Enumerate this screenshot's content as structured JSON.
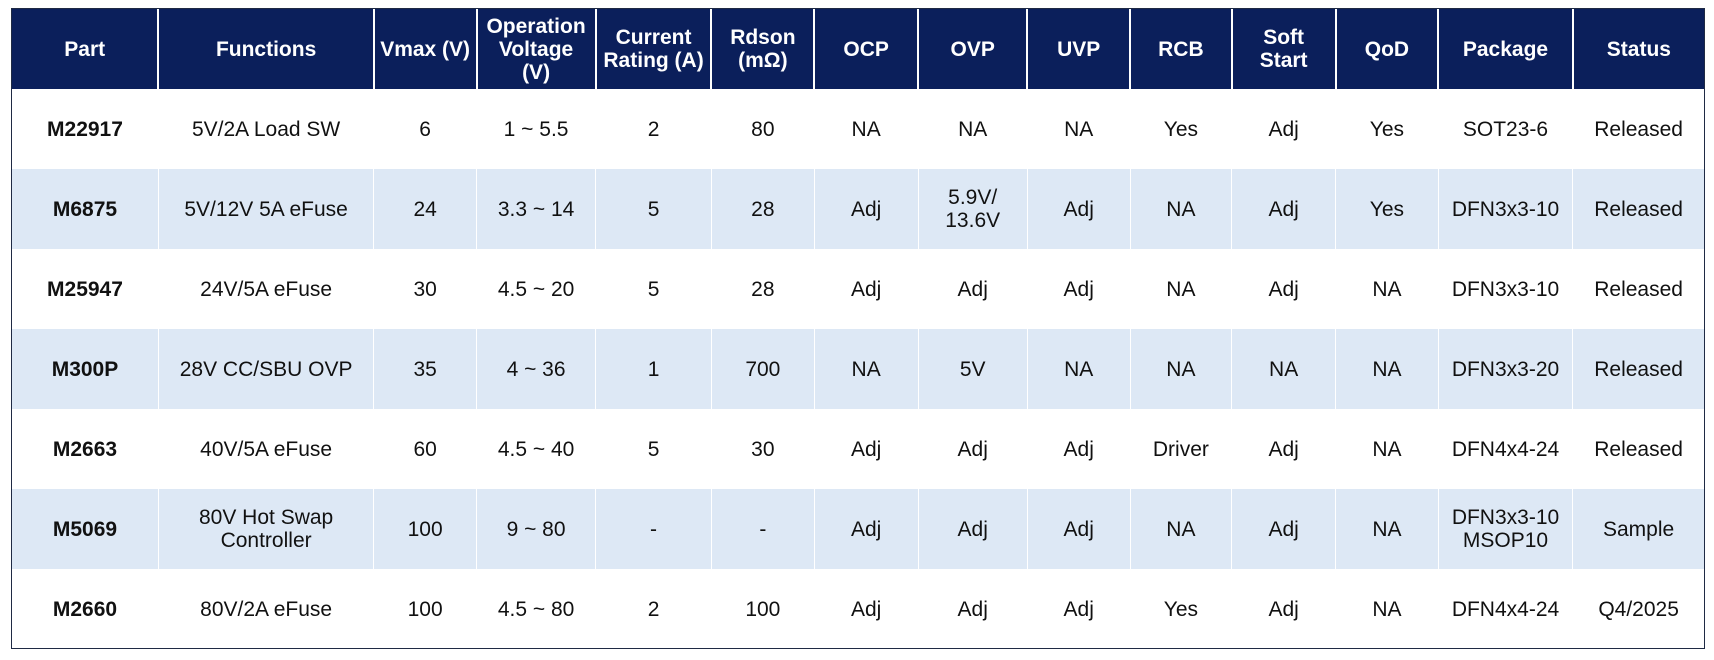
{
  "colors": {
    "header_bg": "#0b1f5b",
    "header_text": "#ffffff",
    "row_alt_bg": "#dde8f5",
    "row_bg": "#ffffff"
  },
  "table": {
    "headers": [
      "Part",
      "Functions",
      "Vmax (V)",
      "Operation\nVoltage\n(V)",
      "Current\nRating (A)",
      "Rdson\n(mΩ)",
      "OCP",
      "OVP",
      "UVP",
      "RCB",
      "Soft\nStart",
      "QoD",
      "Package",
      "Status"
    ],
    "rows": [
      [
        "M22917",
        "5V/2A Load SW",
        "6",
        "1 ~ 5.5",
        "2",
        "80",
        "NA",
        "NA",
        "NA",
        "Yes",
        "Adj",
        "Yes",
        "SOT23-6",
        "Released"
      ],
      [
        "M6875",
        "5V/12V 5A eFuse",
        "24",
        "3.3 ~ 14",
        "5",
        "28",
        "Adj",
        "5.9V/\n13.6V",
        "Adj",
        "NA",
        "Adj",
        "Yes",
        "DFN3x3-10",
        "Released"
      ],
      [
        "M25947",
        "24V/5A eFuse",
        "30",
        "4.5 ~ 20",
        "5",
        "28",
        "Adj",
        "Adj",
        "Adj",
        "NA",
        "Adj",
        "NA",
        "DFN3x3-10",
        "Released"
      ],
      [
        "M300P",
        "28V CC/SBU OVP",
        "35",
        "4 ~ 36",
        "1",
        "700",
        "NA",
        "5V",
        "NA",
        "NA",
        "NA",
        "NA",
        "DFN3x3-20",
        "Released"
      ],
      [
        "M2663",
        "40V/5A eFuse",
        "60",
        "4.5 ~ 40",
        "5",
        "30",
        "Adj",
        "Adj",
        "Adj",
        "Driver",
        "Adj",
        "NA",
        "DFN4x4-24",
        "Released"
      ],
      [
        "M5069",
        "80V Hot Swap\nController",
        "100",
        "9 ~ 80",
        "-",
        "-",
        "Adj",
        "Adj",
        "Adj",
        "NA",
        "Adj",
        "NA",
        "DFN3x3-10\nMSOP10",
        "Sample"
      ],
      [
        "M2660",
        "80V/2A eFuse",
        "100",
        "4.5 ~ 80",
        "2",
        "100",
        "Adj",
        "Adj",
        "Adj",
        "Yes",
        "Adj",
        "NA",
        "DFN4x4-24",
        "Q4/2025"
      ]
    ]
  }
}
